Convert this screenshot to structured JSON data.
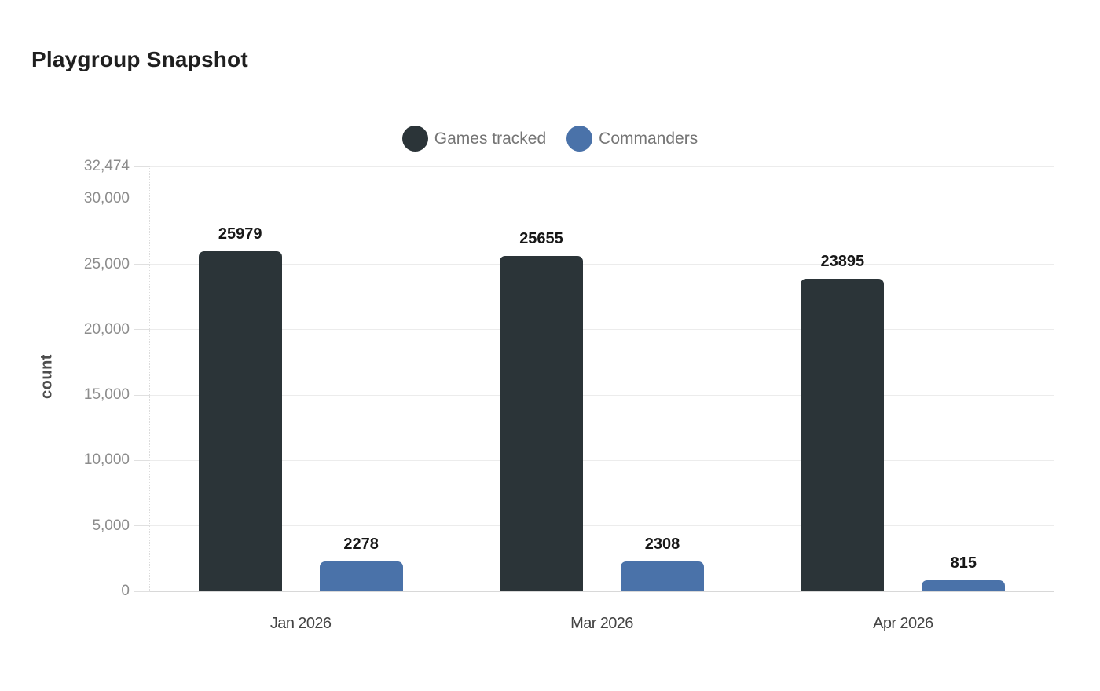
{
  "page": {
    "title": "Playgroup Snapshot"
  },
  "colors": {
    "series_dark": "#2b3438",
    "series_blue": "#4a72a9",
    "gridline": "#ececec",
    "baseline": "#d8d8d8",
    "tick_text": "#8c8c8c",
    "legend_text": "#757575",
    "value_label_text": "#171717",
    "background": "#ffffff"
  },
  "chart_data": {
    "type": "bar",
    "title": "Playgroup Snapshot",
    "xlabel": "",
    "ylabel": "count",
    "ylim": [
      0,
      32474
    ],
    "grid": "horizontal",
    "legend_position": "top-center",
    "categories": [
      "Jan 2026",
      "Mar 2026",
      "Apr 2026"
    ],
    "series": [
      {
        "name": "Games tracked",
        "color": "#2b3438",
        "values": [
          25979,
          25655,
          23895
        ],
        "value_labels": [
          "25979",
          "25655",
          "23895"
        ]
      },
      {
        "name": "Commanders",
        "color": "#4a72a9",
        "values": [
          2278,
          2308,
          815
        ],
        "value_labels": [
          "2278",
          "2308",
          "815"
        ]
      }
    ],
    "y_ticks": [
      {
        "value": 0,
        "label": "0"
      },
      {
        "value": 5000,
        "label": "5,000"
      },
      {
        "value": 10000,
        "label": "10,000"
      },
      {
        "value": 15000,
        "label": "15,000"
      },
      {
        "value": 20000,
        "label": "20,000"
      },
      {
        "value": 25000,
        "label": "25,000"
      },
      {
        "value": 30000,
        "label": "30,000"
      },
      {
        "value": 32474,
        "label": "32,474"
      }
    ]
  }
}
